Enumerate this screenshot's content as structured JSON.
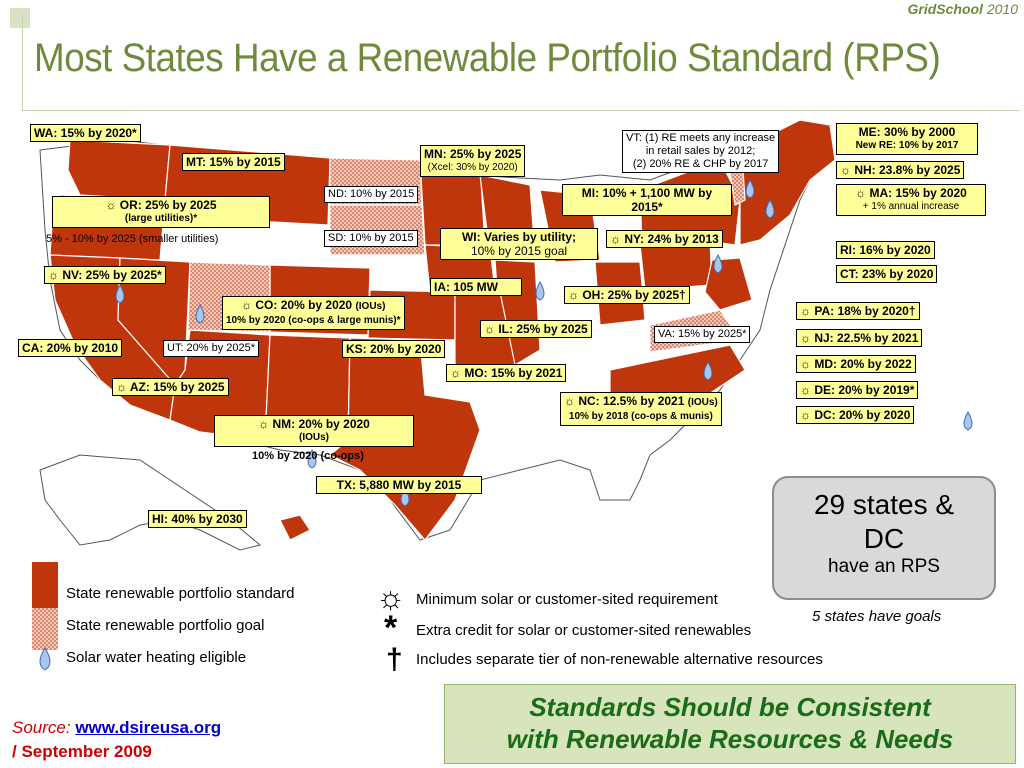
{
  "brand": {
    "name": "GridSchool",
    "year": "2010"
  },
  "title": "Most States Have a Renewable Portfolio Standard (RPS)",
  "state_labels": {
    "wa": "WA: 15% by 2020*",
    "mt": "MT: 15% by 2015",
    "or_main": "☼ OR: 25% by 2025",
    "or_sub": "(large utilities)*",
    "or_small": "5% - 10% by 2025 (smaller utilities)",
    "nv": "☼ NV: 25% by 2025*",
    "co_main": "☼ CO: 20% by 2020",
    "co_ious": "(IOUs)",
    "co_sub": "10% by 2020 (co-ops & large munis)*",
    "ca": "CA: 20% by 2010",
    "ut": "UT: 20% by 2025*",
    "az": "☼ AZ: 15% by 2025",
    "nm_main": "☼ NM: 20% by 2020",
    "nm_ious": "(IOUs)",
    "nm_sub": "10% by 2020 (co-ops)",
    "hi": "HI: 40% by 2030",
    "tx": "TX: 5,880 MW by 2015",
    "ks": "KS: 20% by 2020",
    "nd": "ND: 10% by 2015",
    "sd": "SD: 10% by 2015",
    "mn_main": "MN: 25% by 2025",
    "mn_sub": "(Xcel: 30% by 2020)",
    "wi_main": "WI: Varies by utility;",
    "wi_sub": "10% by 2015 goal",
    "ia": "IA: 105 MW",
    "mo": "☼ MO: 15% by 2021",
    "il": "☼ IL: 25% by 2025",
    "mi": "MI: 10% + 1,100 MW by 2015*",
    "oh": "☼ OH: 25% by 2025†",
    "ny": "☼ NY: 24% by 2013",
    "vt_1": "VT: (1) RE meets any increase",
    "vt_2": "in retail sales by 2012;",
    "vt_3": "(2) 20% RE & CHP by 2017",
    "va": "VA: 15% by 2025*",
    "nc_main": "☼ NC: 12.5% by 2021",
    "nc_ious": "(IOUs)",
    "nc_sub": "10% by 2018 (co-ops & munis)",
    "me_main": "ME: 30% by 2000",
    "me_sub": "New RE: 10% by 2017",
    "nh": "☼ NH: 23.8% by 2025",
    "ma_main": "☼ MA: 15% by 2020",
    "ma_sub": "+ 1% annual increase",
    "ri": "RI: 16% by 2020",
    "ct": "CT: 23% by 2020",
    "pa": "☼ PA: 18% by 2020†",
    "nj": "☼ NJ: 22.5% by 2021",
    "md": "☼ MD: 20% by 2022",
    "de": "☼ DE: 20% by 2019*",
    "dc": "☼ DC: 20% by 2020"
  },
  "legend": {
    "standard": "State renewable portfolio standard",
    "goal": "State renewable portfolio goal",
    "solar_water": "Solar water heating eligible",
    "sun_symbol": "☼",
    "sun_text": "Minimum solar or customer-sited requirement",
    "star_symbol": "*",
    "star_text": "Extra credit for solar or customer-sited renewables",
    "dagger_symbol": "†",
    "dagger_text": "Includes separate tier of non-renewable alternative resources"
  },
  "summary": {
    "line1": "29 states &",
    "line2": "DC",
    "line3": "have an RPS",
    "goals": "5 states have goals"
  },
  "footer": {
    "line1": "Standards Should be Consistent",
    "line2": "with Renewable Resources & Needs"
  },
  "source": {
    "label": "Source:",
    "url": "www.dsireusa.org",
    "date": "/ September 2009"
  },
  "colors": {
    "rps": "#c0360c",
    "goal_fill": "#f3c9bb",
    "label_bg": "#ffff99",
    "title": "#6f8a3a",
    "drop": "#a9c6ef"
  }
}
